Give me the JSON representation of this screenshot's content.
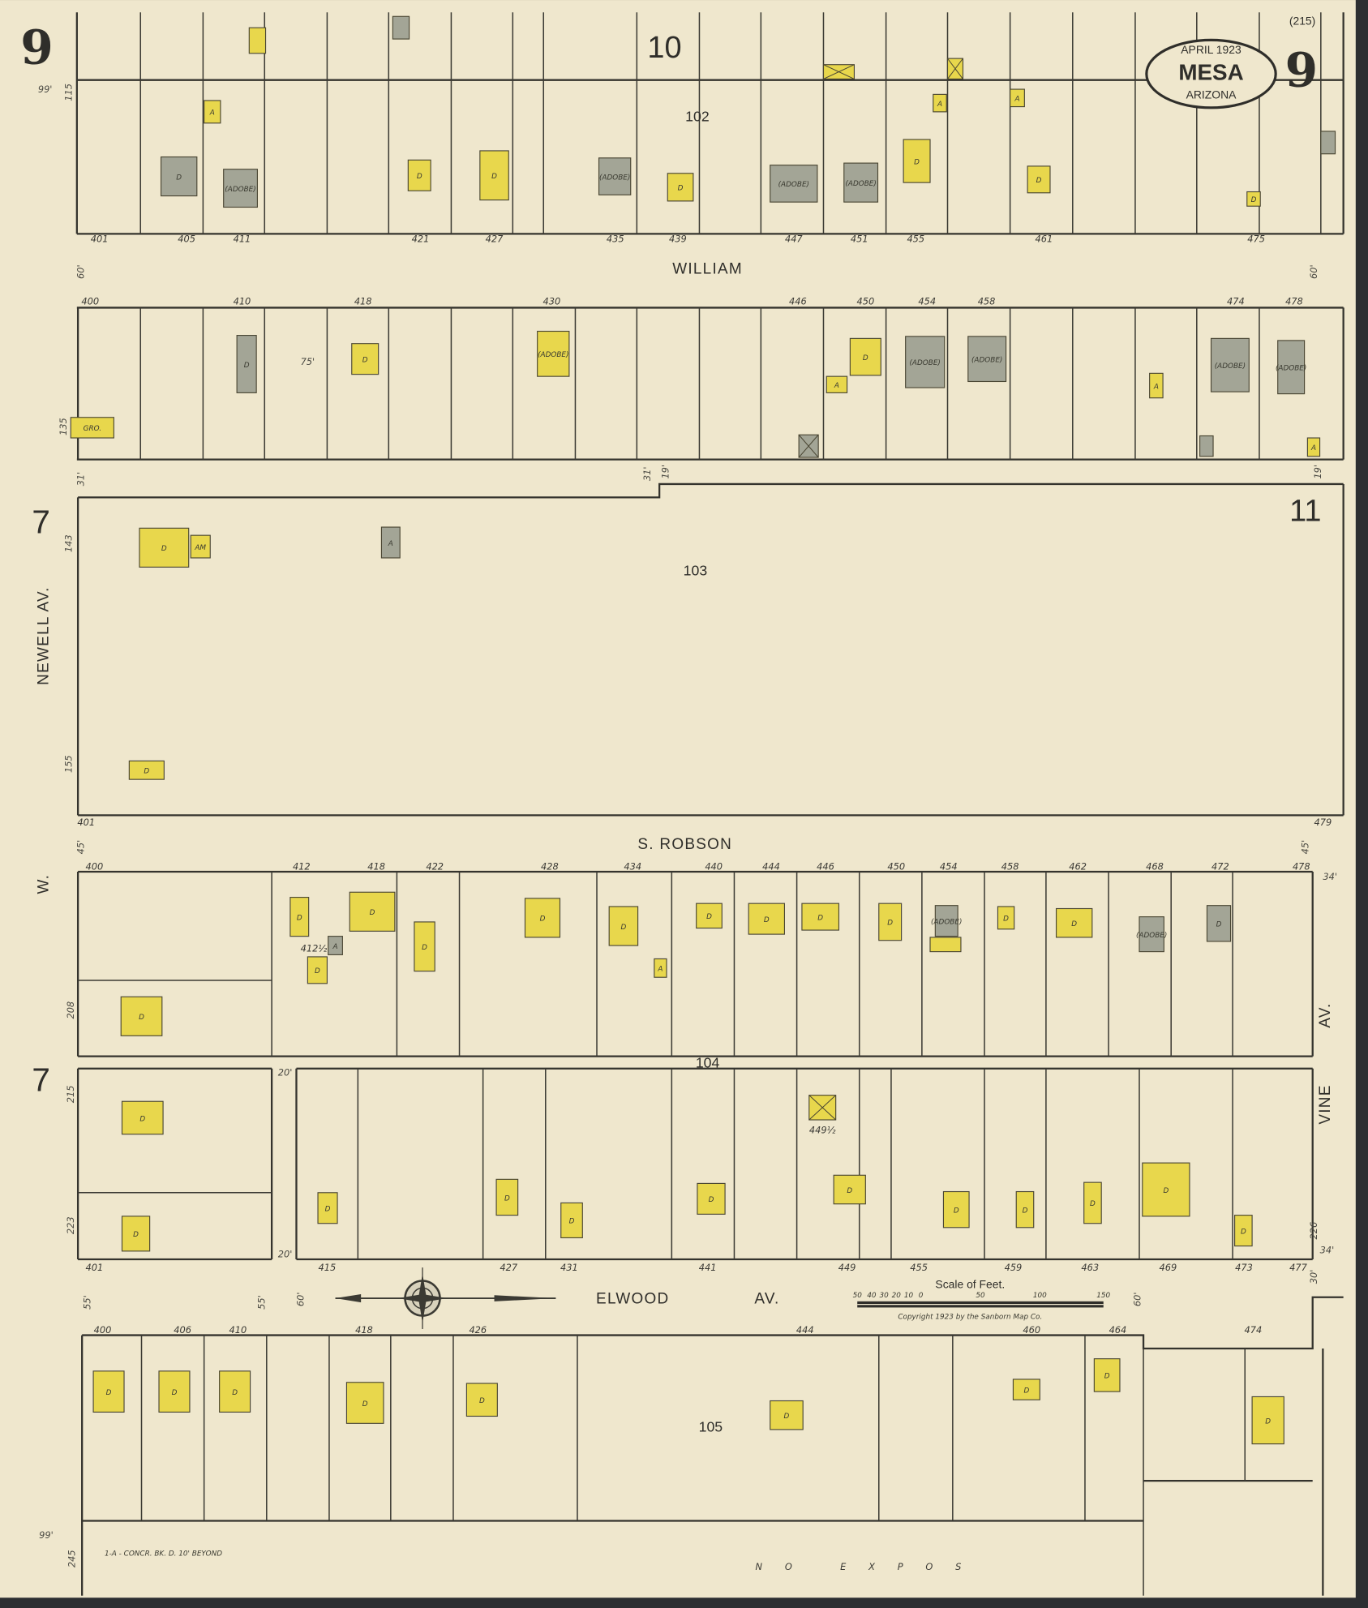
{
  "title": {
    "date": "April 1923",
    "city": "MESA",
    "state": "Arizona"
  },
  "sheet": {
    "number": "9",
    "number_right": "9",
    "index": "(215)"
  },
  "adjoining_sheets": {
    "top": "10",
    "right": "11",
    "left_upper": "7",
    "left_lower": "7"
  },
  "blocks": {
    "b102": "102",
    "b103": "103",
    "b104": "104",
    "b105": "105"
  },
  "streets": {
    "william": "WILLIAM",
    "robson": "S. ROBSON",
    "elwood": "ELWOOD",
    "elwood_suffix": "AV.",
    "newell": "NEWELL AV.",
    "vine": "VINE",
    "vine_suffix": "AV.",
    "w_prefix": "W."
  },
  "house_numbers": {
    "row_102_south": [
      "401",
      "405",
      "411",
      "421",
      "427",
      "435",
      "439",
      "447",
      "451",
      "455",
      "461",
      "475"
    ],
    "row_william_north": [
      "400",
      "410",
      "418",
      "430",
      "446",
      "450",
      "454",
      "458",
      "474",
      "478"
    ],
    "row_103": [
      "401",
      "479"
    ],
    "row_robson_south": [
      "400",
      "412",
      "418",
      "422",
      "428",
      "434",
      "440",
      "444",
      "446",
      "450",
      "454",
      "458",
      "462",
      "468",
      "472",
      "478"
    ],
    "row_elwood_north": [
      "401",
      "415",
      "427",
      "431",
      "441",
      "449",
      "455",
      "459",
      "463",
      "469",
      "473",
      "477"
    ],
    "row_elwood_south": [
      "400",
      "406",
      "410",
      "418",
      "426",
      "444",
      "460",
      "464",
      "474"
    ],
    "extra": [
      "412½",
      "449½"
    ]
  },
  "dimension_labels": [
    "99'",
    "115",
    "60'",
    "60'",
    "31'",
    "31'",
    "19'",
    "19'",
    "143",
    "155",
    "45'",
    "45'",
    "34'",
    "208",
    "215",
    "223",
    "20'",
    "20'",
    "34'",
    "226",
    "55'",
    "55'",
    "60'",
    "60'",
    "30'",
    "135",
    "99'",
    "245",
    "75'"
  ],
  "scale": {
    "title": "Scale of Feet.",
    "ticks": [
      "50",
      "40",
      "30",
      "20",
      "10",
      "0",
      "50",
      "100",
      "150"
    ]
  },
  "copyright": "Copyright 1923 by the Sanborn Map Co.",
  "notes": {
    "bottom_left": "1-A - CONCR. BK. D. 10' BEYOND",
    "bottom_center": "NO EXPOS"
  },
  "building_labels": {
    "dwelling": "D",
    "auto": "A",
    "adobe": "(ADOBE)",
    "grocery": "GRO.",
    "store_am": "AM"
  },
  "colors": {
    "paper": "#efe7cd",
    "frame": "#e8d74c",
    "adobe": "#a3a596",
    "lines": "#3b3a33",
    "border": "#2c2e31"
  }
}
